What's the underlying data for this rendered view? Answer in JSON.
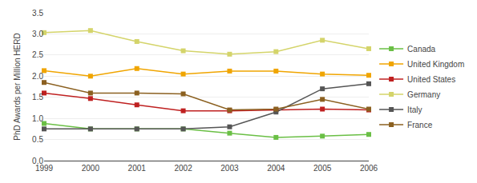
{
  "chart_data": {
    "type": "line",
    "x": [
      1999,
      2000,
      2001,
      2002,
      2003,
      2004,
      2005,
      2006
    ],
    "series": [
      {
        "name": "Canada",
        "color": "#6abf45",
        "marker": "square",
        "values": [
          0.88,
          0.75,
          0.75,
          0.75,
          0.65,
          0.55,
          0.58,
          0.62
        ]
      },
      {
        "name": "United Kingdom",
        "color": "#f0a500",
        "marker": "square",
        "values": [
          2.13,
          2.0,
          2.18,
          2.05,
          2.12,
          2.12,
          2.05,
          2.02
        ]
      },
      {
        "name": "United States",
        "color": "#bf2020",
        "marker": "square",
        "values": [
          1.6,
          1.47,
          1.32,
          1.18,
          1.18,
          1.2,
          1.22,
          1.2
        ]
      },
      {
        "name": "Germany",
        "color": "#d4d46a",
        "marker": "square",
        "values": [
          3.03,
          3.08,
          2.82,
          2.6,
          2.52,
          2.58,
          2.85,
          2.65
        ]
      },
      {
        "name": "Italy",
        "color": "#555555",
        "marker": "square",
        "values": [
          0.75,
          0.75,
          0.75,
          0.75,
          0.8,
          1.15,
          1.7,
          1.82
        ]
      },
      {
        "name": "France",
        "color": "#8B6020",
        "marker": "square",
        "values": [
          1.85,
          1.6,
          1.6,
          1.58,
          1.2,
          1.22,
          1.45,
          1.22
        ]
      }
    ],
    "y_label": "PhD Awards per Million HERD",
    "xlim": [
      1999,
      2006
    ],
    "xticks": [
      1999,
      2000,
      2001,
      2002,
      2003,
      2004,
      2005,
      2006
    ],
    "ylim": [
      0.0,
      3.5
    ],
    "yticks": [
      {
        "value": 0.0,
        "label": "0.0"
      },
      0.5,
      {
        "value": 1.0,
        "label": "1.0"
      },
      1.5,
      {
        "value": 2.0,
        "label": "2.0"
      },
      2.5,
      {
        "value": 3.0,
        "label": "3.0"
      },
      3.5
    ],
    "grid": true,
    "legend": "right"
  }
}
